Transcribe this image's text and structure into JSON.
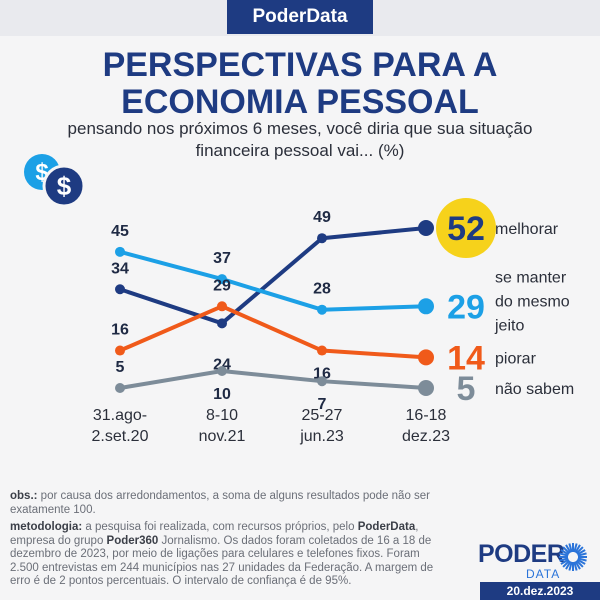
{
  "header": {
    "brand": "PoderData"
  },
  "title_line1": "PERSPECTIVAS PARA A",
  "title_line2": "ECONOMIA PESSOAL",
  "subtitle_line1": "pensando nos próximos 6 meses, você diria que sua situação",
  "subtitle_line2": "financeira pessoal vai... (%)",
  "icons": {
    "coins": "dollar-coins-icon",
    "logo_mark": "sunburst-icon"
  },
  "colors": {
    "melhorar": "#1e3b82",
    "se_manter": "#1ca0e6",
    "piorar": "#f05a1a",
    "nao_sabem": "#7d8c99",
    "highlight": "#f6d21b"
  },
  "chart_data": {
    "type": "line",
    "categories": [
      [
        "31.ago-",
        "2.set.20"
      ],
      [
        "8-10",
        "nov.21"
      ],
      [
        "25-27",
        "jun.23"
      ],
      [
        "16-18",
        "dez.23"
      ]
    ],
    "series": [
      {
        "name": "melhorar",
        "values": [
          34,
          24,
          49,
          52
        ]
      },
      {
        "name": "se manter do mesmo jeito",
        "label_lines": [
          "se manter",
          "do mesmo",
          "jeito"
        ],
        "values": [
          45,
          37,
          28,
          29
        ]
      },
      {
        "name": "piorar",
        "values": [
          16,
          29,
          16,
          14
        ]
      },
      {
        "name": "não sabem",
        "values": [
          5,
          10,
          7,
          5
        ]
      }
    ]
  },
  "footer": {
    "obs_label": "obs.:",
    "obs_text": " por causa dos arredondamentos, a soma de alguns resultados pode não ser exatamente 100.",
    "met_label": "metodologia:",
    "met_text_1": " a pesquisa foi realizada, com recursos próprios, pelo ",
    "met_brand": "PoderData",
    "met_text_2": ", empresa do grupo ",
    "met_brand2": "Poder360",
    "met_text_3": " Jornalismo. Os dados foram coletados de 16 a 18 de dezembro de 2023, por meio de ligações para celulares e telefones fixos. Foram 2.500 entrevistas em 244 municípios nas 27 unidades da Federação. A margem de erro é de 2 pontos percentuais. O intervalo de confiança é de 95%."
  },
  "logo": {
    "poder": "PODER",
    "data": "DATA"
  },
  "date": "20.dez.2023"
}
